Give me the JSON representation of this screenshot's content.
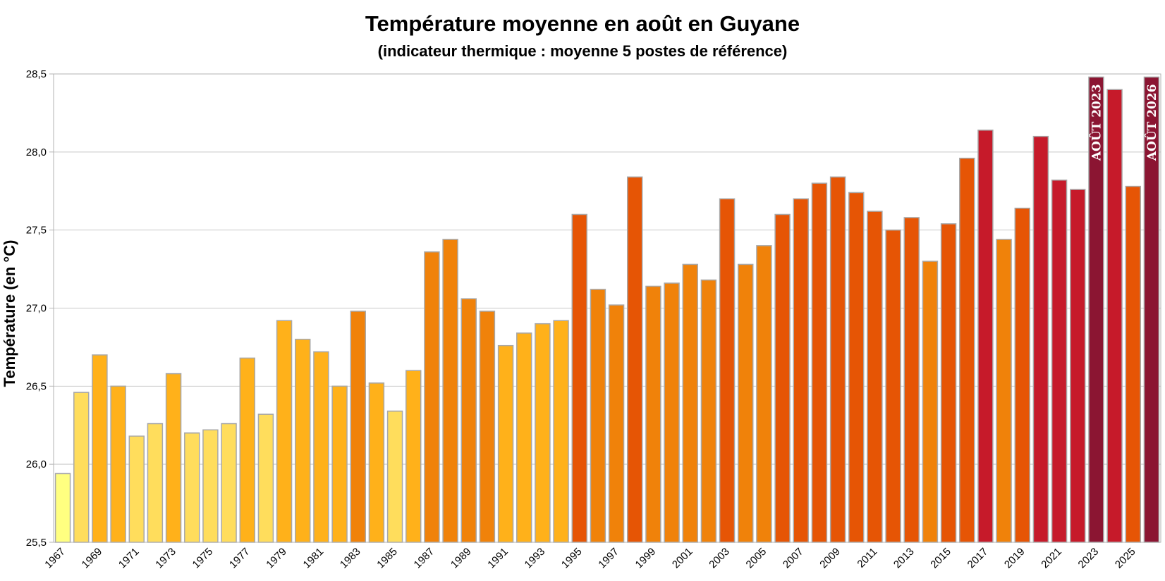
{
  "chart_data": {
    "type": "bar",
    "title": "Température moyenne en août en Guyane",
    "subtitle": "(indicateur thermique : moyenne 5 postes de référence)",
    "ylabel": "Température (en °C)",
    "xlabel": "",
    "ylim": [
      25.5,
      28.5
    ],
    "yticks": [
      "25,5",
      "26,0",
      "26,5",
      "27,0",
      "27,5",
      "28,0",
      "28,5"
    ],
    "grid": true,
    "legend": "none",
    "categories": [
      "1967",
      "1968",
      "1969",
      "1970",
      "1971",
      "1972",
      "1973",
      "1974",
      "1975",
      "1976",
      "1977",
      "1978",
      "1979",
      "1980",
      "1981",
      "1982",
      "1983",
      "1984",
      "1985",
      "1986",
      "1987",
      "1988",
      "1989",
      "1990",
      "1991",
      "1992",
      "1993",
      "1994",
      "1995",
      "1996",
      "1997",
      "1998",
      "1999",
      "2000",
      "2001",
      "2002",
      "2003",
      "2004",
      "2005",
      "2006",
      "2007",
      "2008",
      "2009",
      "2010",
      "2011",
      "2012",
      "2013",
      "2014",
      "2015",
      "2016",
      "2017",
      "2018",
      "2019",
      "2020",
      "2021",
      "2022",
      "2023",
      "2024",
      "2025",
      "2026"
    ],
    "xtick_labels": [
      "1967",
      "",
      "1969",
      "",
      "1971",
      "",
      "1973",
      "",
      "1975",
      "",
      "1977",
      "",
      "1979",
      "",
      "1981",
      "",
      "1983",
      "",
      "1985",
      "",
      "1987",
      "",
      "1989",
      "",
      "1991",
      "",
      "1993",
      "",
      "1995",
      "",
      "1997",
      "",
      "1999",
      "",
      "2001",
      "",
      "2003",
      "",
      "2005",
      "",
      "2007",
      "",
      "2009",
      "",
      "2011",
      "",
      "2013",
      "",
      "2015",
      "",
      "2017",
      "",
      "2019",
      "",
      "2021",
      "",
      "2023",
      "",
      "2025",
      ""
    ],
    "values": [
      25.94,
      26.46,
      26.7,
      26.5,
      26.18,
      26.26,
      26.58,
      26.2,
      26.22,
      26.26,
      26.68,
      26.32,
      26.92,
      26.8,
      26.72,
      26.5,
      26.98,
      26.52,
      26.34,
      26.6,
      27.36,
      27.44,
      27.06,
      26.98,
      26.76,
      26.84,
      26.9,
      26.92,
      27.6,
      27.12,
      27.02,
      27.84,
      27.14,
      27.16,
      27.28,
      27.18,
      27.7,
      27.28,
      27.4,
      27.6,
      27.7,
      27.8,
      27.84,
      27.74,
      27.62,
      27.5,
      27.58,
      27.3,
      27.54,
      27.96,
      28.14,
      27.44,
      27.64,
      28.1,
      27.82,
      27.76,
      28.48,
      28.4,
      27.78,
      28.48
    ],
    "colors": [
      "#ffff80",
      "#ffdd5c",
      "#ffb11a",
      "#ffb11a",
      "#ffdd5c",
      "#ffdd5c",
      "#ffb11a",
      "#ffdd5c",
      "#ffdd5c",
      "#ffdd5c",
      "#ffb11a",
      "#ffdd5c",
      "#ffb11a",
      "#ffb11a",
      "#ffb11a",
      "#ffb11a",
      "#f0820a",
      "#ffb11a",
      "#ffdd5c",
      "#ffb11a",
      "#f0820a",
      "#f0820a",
      "#f0820a",
      "#f0820a",
      "#ffb11a",
      "#ffb11a",
      "#ffb11a",
      "#ffb11a",
      "#e65505",
      "#f0820a",
      "#f0820a",
      "#e65505",
      "#f0820a",
      "#f0820a",
      "#f0820a",
      "#f0820a",
      "#e65505",
      "#f0820a",
      "#f0820a",
      "#e65505",
      "#e65505",
      "#e65505",
      "#e65505",
      "#e65505",
      "#e65505",
      "#e65505",
      "#e65505",
      "#f0820a",
      "#e65505",
      "#e65505",
      "#c61a2a",
      "#f0820a",
      "#e65505",
      "#c61a2a",
      "#c61a2a",
      "#c61a2a",
      "#8b1532",
      "#c61a2a",
      "#e65505",
      "#8b1532"
    ],
    "annotations": [
      {
        "category": "2023",
        "text": "AOÛT 2023"
      },
      {
        "category": "2026",
        "text": "AOÛT 2026"
      }
    ]
  }
}
